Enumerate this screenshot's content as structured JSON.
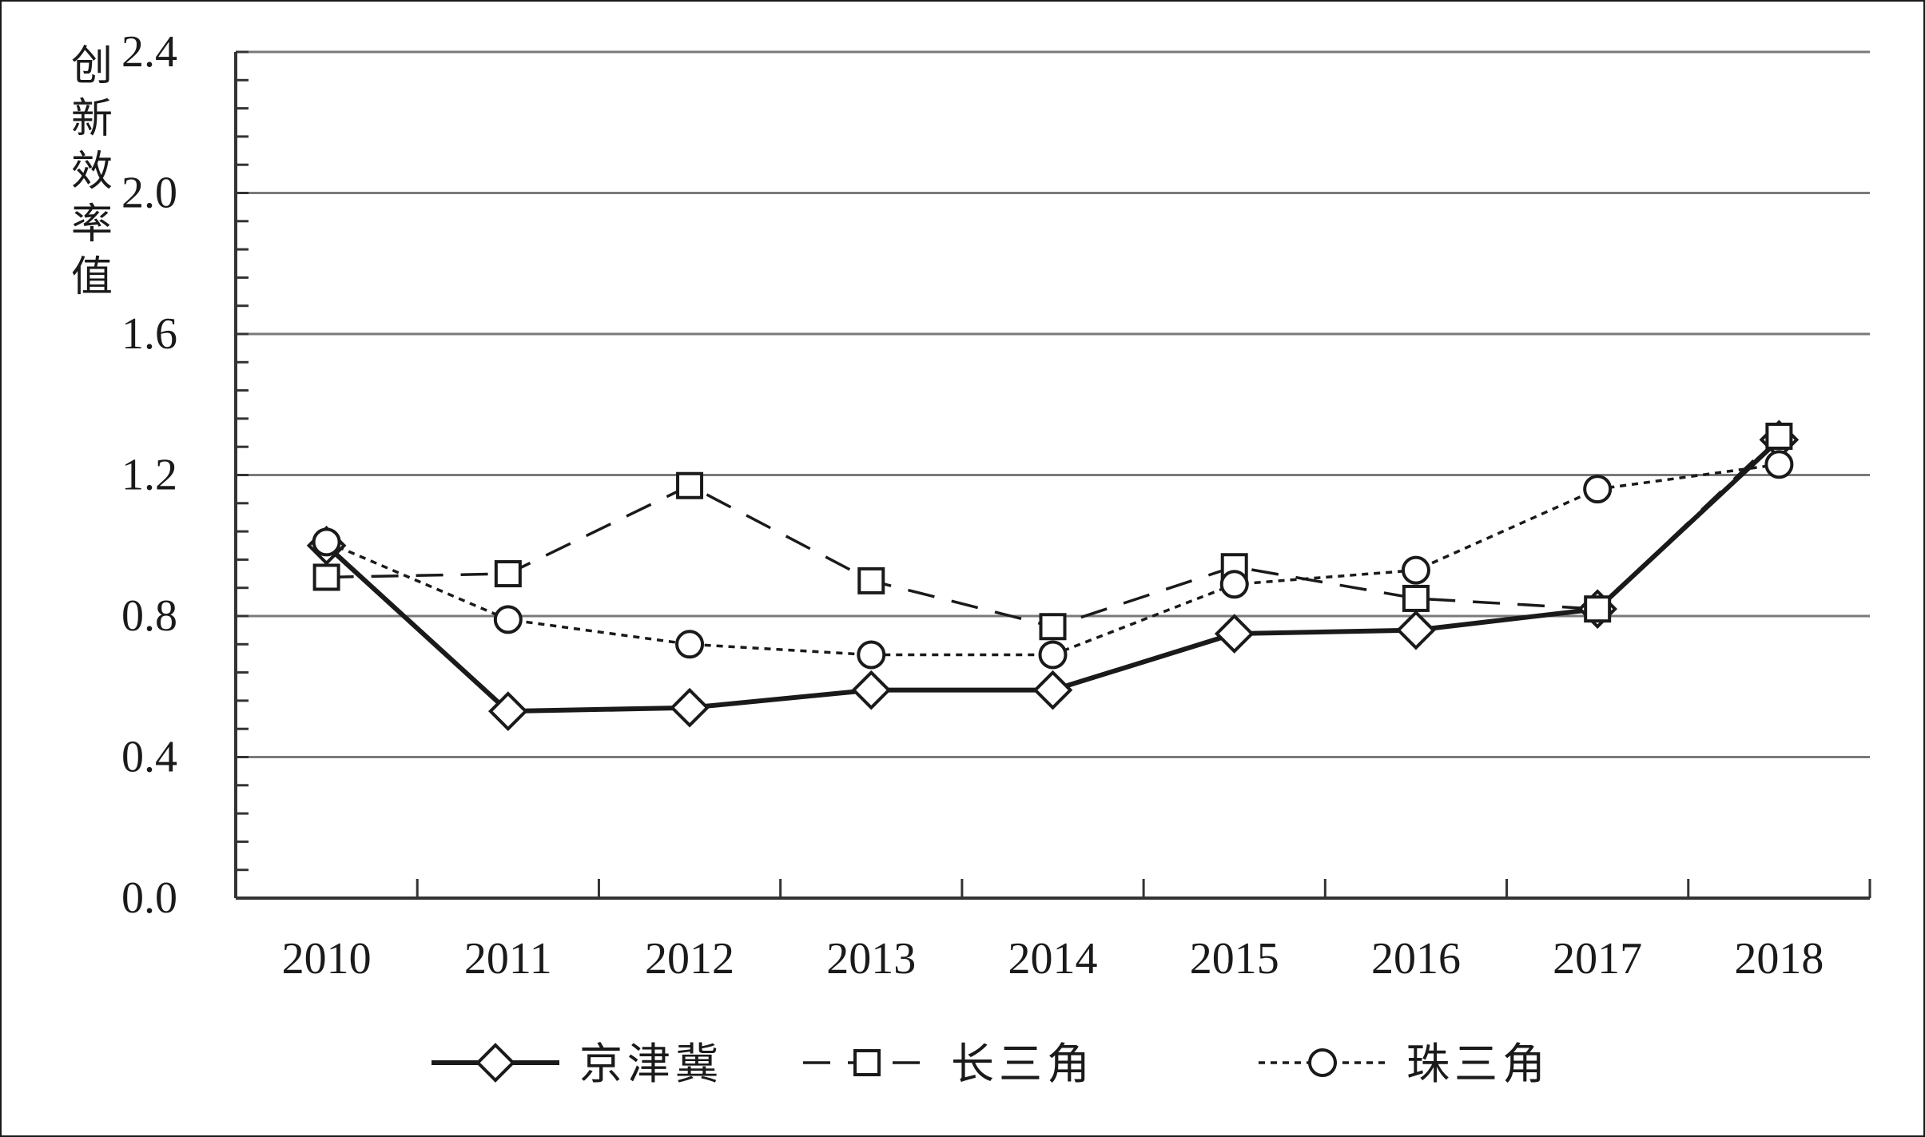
{
  "chart_data": {
    "type": "line",
    "title": "",
    "xlabel": "",
    "ylabel": "创新效率值",
    "categories": [
      "2010",
      "2011",
      "2012",
      "2013",
      "2014",
      "2015",
      "2016",
      "2017",
      "2018"
    ],
    "ylim": [
      0.0,
      2.4
    ],
    "yticks": [
      "0.0",
      "0.4",
      "0.8",
      "1.2",
      "1.6",
      "2.0",
      "2.4"
    ],
    "grid": "horizontal",
    "legend_position": "bottom",
    "series": [
      {
        "name": "京津冀",
        "values": [
          1.0,
          0.53,
          0.54,
          0.59,
          0.59,
          0.75,
          0.76,
          0.82,
          1.3
        ],
        "line_style": "solid",
        "marker": "diamond",
        "color": "#1a1a1a"
      },
      {
        "name": "长三角",
        "values": [
          0.91,
          0.92,
          1.17,
          0.9,
          0.77,
          0.94,
          0.85,
          0.82,
          1.31
        ],
        "line_style": "dashed",
        "marker": "square",
        "color": "#1a1a1a"
      },
      {
        "name": "珠三角",
        "values": [
          1.01,
          0.79,
          0.72,
          0.69,
          0.69,
          0.89,
          0.93,
          1.16,
          1.23
        ],
        "line_style": "dotted",
        "marker": "circle",
        "color": "#1a1a1a"
      }
    ]
  }
}
